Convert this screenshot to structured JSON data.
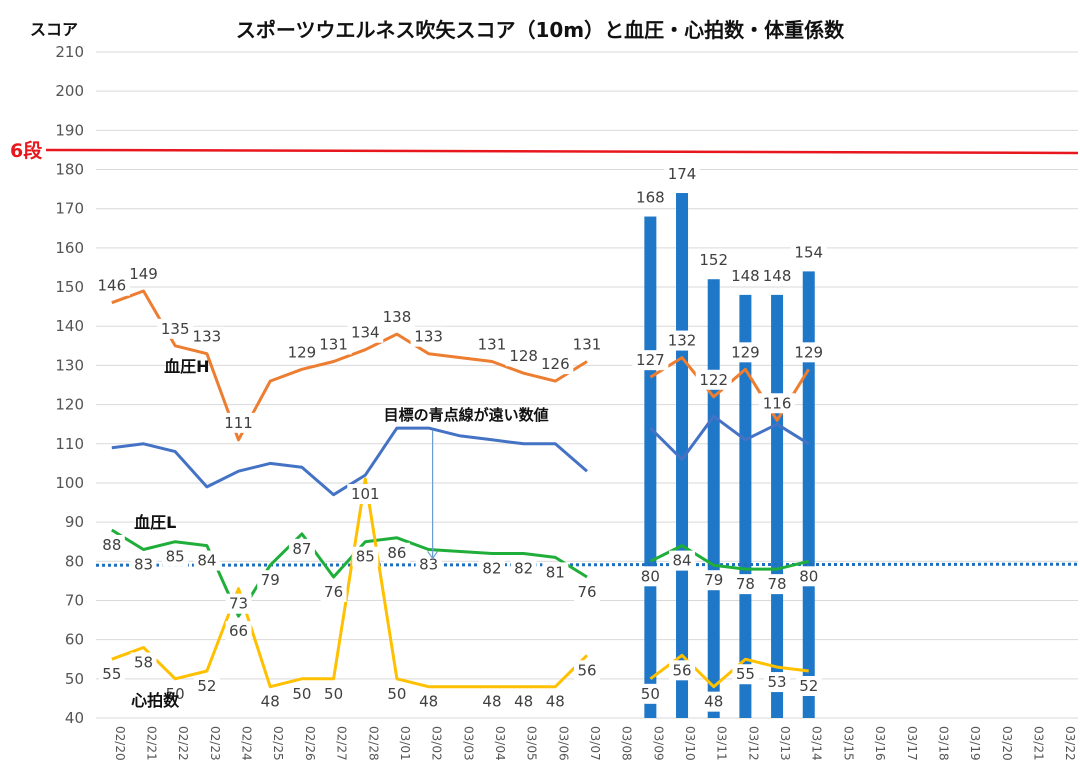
{
  "chart_data": {
    "type": "line",
    "title": "スポーツウエルネス吹矢スコア（10m）と血圧・心拍数・体重係数",
    "ylabel": "スコア",
    "ylim": [
      40,
      210
    ],
    "yticks": [
      40,
      50,
      60,
      70,
      80,
      90,
      100,
      110,
      120,
      130,
      140,
      150,
      160,
      170,
      180,
      190,
      200,
      210
    ],
    "grid": true,
    "categories": [
      "02/20",
      "02/21",
      "02/22",
      "02/23",
      "02/24",
      "02/25",
      "02/26",
      "02/27",
      "02/28",
      "03/01",
      "03/02",
      "03/03",
      "03/04",
      "03/05",
      "03/06",
      "03/07",
      "03/08",
      "03/09",
      "03/10",
      "03/11",
      "03/12",
      "03/13",
      "03/14",
      "03/15",
      "03/16",
      "03/17",
      "03/18",
      "03/19",
      "03/20",
      "03/21",
      "03/22"
    ],
    "reference_line": {
      "label": "6段",
      "value": 185,
      "color": "#e8171d"
    },
    "target_line": {
      "value": 79,
      "color": "#1f6fc1"
    },
    "annotation": {
      "text": "目標の青点線が遠い数値",
      "category": "03/02",
      "value": 80
    },
    "series": [
      {
        "name": "スコア",
        "kind": "bar",
        "color": "#1f77c8",
        "values": [
          null,
          null,
          null,
          null,
          null,
          null,
          null,
          null,
          null,
          null,
          null,
          null,
          null,
          null,
          null,
          null,
          null,
          168,
          174,
          152,
          148,
          148,
          154,
          null,
          null,
          null,
          null,
          null,
          null,
          null,
          null
        ]
      },
      {
        "name": "血圧H",
        "kind": "line",
        "color": "#ed7d31",
        "values": [
          146,
          149,
          135,
          133,
          111,
          126,
          129,
          131,
          134,
          138,
          133,
          132,
          131,
          128,
          126,
          131,
          null,
          127,
          132,
          122,
          129,
          116,
          129,
          null,
          null,
          null,
          null,
          null,
          null,
          null,
          null
        ]
      },
      {
        "name": "",
        "kind": "line",
        "color": "#4472c4",
        "values": [
          109,
          110,
          108,
          99,
          103,
          105,
          104,
          97,
          102,
          114,
          114,
          112,
          111,
          110,
          110,
          103,
          null,
          114,
          106,
          117,
          111,
          115,
          110,
          null,
          null,
          null,
          null,
          null,
          null,
          null,
          null
        ]
      },
      {
        "name": "血圧L",
        "kind": "line",
        "color": "#1fae3a",
        "values": [
          88,
          83,
          85,
          84,
          66,
          79,
          87,
          76,
          85,
          86,
          83,
          82.5,
          82,
          82,
          81,
          76,
          null,
          80,
          84,
          79,
          78,
          78,
          80,
          null,
          null,
          null,
          null,
          null,
          null,
          null,
          null
        ]
      },
      {
        "name": "心拍数",
        "kind": "line",
        "color": "#ffc000",
        "values": [
          55,
          58,
          50,
          52,
          73,
          48,
          50,
          50,
          101,
          50,
          48,
          48,
          48,
          48,
          48,
          56,
          null,
          50,
          56,
          48,
          55,
          53,
          52,
          null,
          null,
          null,
          null,
          null,
          null,
          null,
          null
        ]
      }
    ],
    "data_labels": {
      "スコア": [
        "",
        "",
        "",
        "",
        "",
        "",
        "",
        "",
        "",
        "",
        "",
        "",
        "",
        "",
        "",
        "",
        "",
        "168",
        "174",
        "152",
        "148",
        "148",
        "154",
        "",
        "",
        "",
        "",
        "",
        "",
        "",
        ""
      ],
      "血圧H": [
        "146",
        "149",
        "135",
        "133",
        "111",
        "",
        "129",
        "131",
        "134",
        "138",
        "133",
        "",
        "131",
        "128",
        "126",
        "131",
        "",
        "127",
        "132",
        "122",
        "129",
        "116",
        "129",
        "",
        "",
        "",
        "",
        "",
        "",
        "",
        ""
      ],
      "血圧L": [
        "88",
        "83",
        "85",
        "84",
        "66",
        "79",
        "87",
        "76",
        "85",
        "86",
        "83",
        "",
        "82",
        "82",
        "81",
        "76",
        "",
        "80",
        "84",
        "79",
        "78",
        "78",
        "80",
        "",
        "",
        "",
        "",
        "",
        "",
        "",
        ""
      ],
      "心拍数": [
        "55",
        "58",
        "50",
        "52",
        "73",
        "48",
        "50",
        "50",
        "101",
        "50",
        "48",
        "",
        "48",
        "48",
        "48",
        "56",
        "",
        "50",
        "56",
        "48",
        "55",
        "53",
        "52",
        "",
        "",
        "",
        "",
        "",
        "",
        "",
        ""
      ]
    }
  }
}
